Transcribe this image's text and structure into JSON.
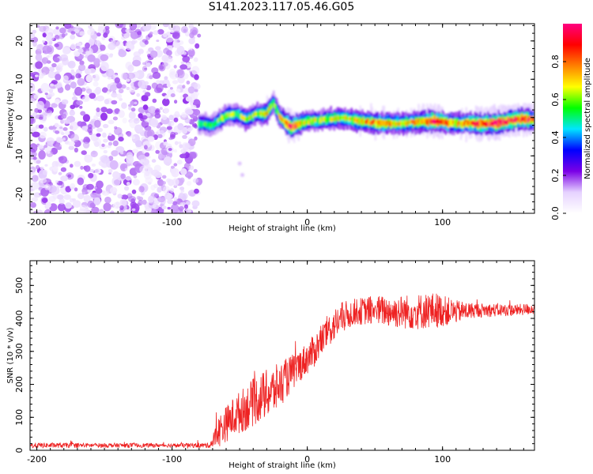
{
  "title": "S141.2023.117.05.46.G05",
  "chart_data": [
    {
      "type": "heatmap",
      "xlabel": "Height of straight line (km)",
      "ylabel": "Frequency (Hz)",
      "xlim": [
        -205,
        168
      ],
      "ylim": [
        -25,
        24.5
      ],
      "xticks": [
        -200,
        -100,
        0,
        100
      ],
      "yticks": [
        -20,
        -10,
        0,
        10,
        20
      ],
      "colorbar": {
        "label": "Normalized spectral amplitude",
        "range": [
          0,
          1
        ],
        "ticks": [
          0.0,
          0.2,
          0.4,
          0.6,
          0.8
        ],
        "colormap": [
          "#ffffff",
          "#e6d2ff",
          "#7a00e6",
          "#0000ff",
          "#00e5ff",
          "#00ff00",
          "#ffff00",
          "#ff8000",
          "#ff0000",
          "#ff0080"
        ]
      },
      "noise_region_x": [
        -205,
        -80
      ],
      "ridge": [
        {
          "x": -80,
          "y": -1.5,
          "a": 0.4
        },
        {
          "x": -70,
          "y": -2,
          "a": 0.4
        },
        {
          "x": -60,
          "y": 0.5,
          "a": 0.5
        },
        {
          "x": -52,
          "y": 1,
          "a": 0.45
        },
        {
          "x": -45,
          "y": -0.5,
          "a": 0.5
        },
        {
          "x": -38,
          "y": 1,
          "a": 0.5
        },
        {
          "x": -30,
          "y": 1,
          "a": 0.6
        },
        {
          "x": -25,
          "y": 4,
          "a": 0.45
        },
        {
          "x": -20,
          "y": 0,
          "a": 0.55
        },
        {
          "x": -12,
          "y": -2.5,
          "a": 0.85
        },
        {
          "x": 0,
          "y": -1,
          "a": 0.5
        },
        {
          "x": 15,
          "y": -0.5,
          "a": 0.5
        },
        {
          "x": 25,
          "y": 0,
          "a": 0.55
        },
        {
          "x": 40,
          "y": -1,
          "a": 0.6
        },
        {
          "x": 55,
          "y": -1.5,
          "a": 0.65
        },
        {
          "x": 70,
          "y": -1.5,
          "a": 0.6
        },
        {
          "x": 85,
          "y": -1,
          "a": 0.65
        },
        {
          "x": 95,
          "y": -1,
          "a": 0.85
        },
        {
          "x": 110,
          "y": -1.5,
          "a": 0.6
        },
        {
          "x": 125,
          "y": -1.5,
          "a": 0.75
        },
        {
          "x": 140,
          "y": -1.5,
          "a": 0.85
        },
        {
          "x": 155,
          "y": -0.5,
          "a": 0.8
        },
        {
          "x": 168,
          "y": -0.5,
          "a": 0.75
        }
      ]
    },
    {
      "type": "line",
      "xlabel": "Height of straight line (km)",
      "ylabel": "SNR (10 * v/v)",
      "xlim": [
        -205,
        168
      ],
      "ylim": [
        0,
        575
      ],
      "xticks": [
        -200,
        -100,
        0,
        100
      ],
      "yticks": [
        0,
        100,
        200,
        300,
        400,
        500
      ],
      "color": "#ee2222",
      "x": [
        -205,
        -100,
        -72,
        -65,
        -55,
        -45,
        -35,
        -25,
        -15,
        -5,
        5,
        15,
        25,
        35,
        50,
        65,
        80,
        95,
        110,
        125,
        140,
        155,
        168
      ],
      "y": [
        15,
        15,
        15,
        60,
        100,
        130,
        160,
        180,
        220,
        260,
        300,
        360,
        400,
        420,
        425,
        420,
        420,
        425,
        420,
        425,
        425,
        425,
        430
      ],
      "amplitude": [
        8,
        6,
        8,
        50,
        60,
        70,
        75,
        75,
        60,
        50,
        50,
        50,
        50,
        40,
        45,
        50,
        55,
        55,
        35,
        22,
        20,
        18,
        18
      ]
    }
  ]
}
